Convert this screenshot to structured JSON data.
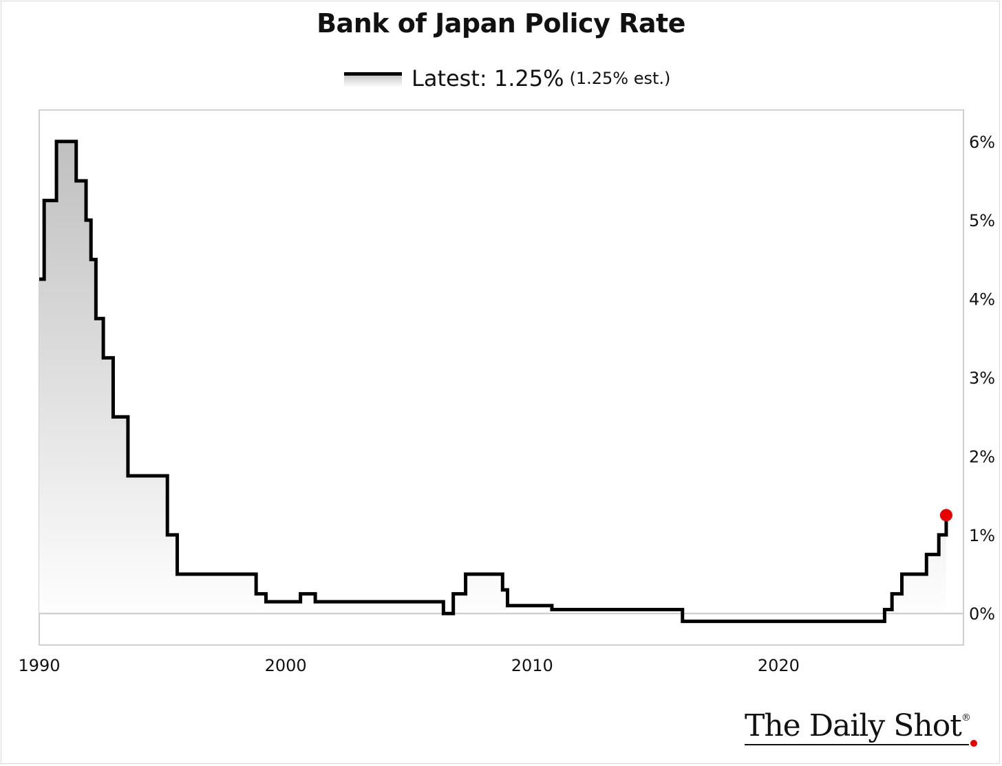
{
  "chart_data": {
    "type": "line",
    "title": "Bank of Japan Policy Rate",
    "legend": {
      "label": "Latest: 1.25%",
      "note": "(1.25% est.)",
      "placement": "top-center"
    },
    "xlim": [
      1990,
      2027.5
    ],
    "ylim": [
      -0.4,
      6.4
    ],
    "x_ticks": [
      {
        "value": 1990,
        "label": "1990"
      },
      {
        "value": 2000,
        "label": "2000"
      },
      {
        "value": 2010,
        "label": "2010"
      },
      {
        "value": 2020,
        "label": "2020"
      }
    ],
    "y_ticks": [
      {
        "value": 0,
        "label": "0%"
      },
      {
        "value": 1,
        "label": "1%"
      },
      {
        "value": 2,
        "label": "2%"
      },
      {
        "value": 3,
        "label": "3%"
      },
      {
        "value": 4,
        "label": "4%"
      },
      {
        "value": 5,
        "label": "5%"
      },
      {
        "value": 6,
        "label": "6%"
      }
    ],
    "y_axis_position": "right",
    "grid": false,
    "zero_line": true,
    "series": [
      {
        "name": "Latest: 1.25%",
        "step": true,
        "color": "#000000",
        "x": [
          1990.0,
          1990.2,
          1990.7,
          1991.5,
          1991.9,
          1992.1,
          1992.3,
          1992.6,
          1993.0,
          1993.6,
          1995.2,
          1995.6,
          1998.8,
          1999.2,
          2000.6,
          2001.2,
          2006.4,
          2006.8,
          2007.3,
          2008.8,
          2009.0,
          2010.8,
          2016.1,
          2024.3,
          2024.6,
          2025.0,
          2026.0,
          2026.5,
          2026.8
        ],
        "y": [
          4.25,
          5.25,
          6.0,
          5.5,
          5.0,
          4.5,
          3.75,
          3.25,
          2.5,
          1.75,
          1.0,
          0.5,
          0.25,
          0.15,
          0.25,
          0.15,
          0.0,
          0.25,
          0.5,
          0.3,
          0.1,
          0.05,
          -0.1,
          0.05,
          0.25,
          0.5,
          0.75,
          1.0,
          1.25
        ]
      }
    ],
    "highlight_point": {
      "x": 2026.8,
      "y": 1.25,
      "color": "#e60000"
    },
    "fill": "gradient #c0c0c0 to #ffffff below line"
  },
  "brand": {
    "name": "The Daily Shot",
    "mark": "®",
    "accent_color": "#e60000"
  }
}
